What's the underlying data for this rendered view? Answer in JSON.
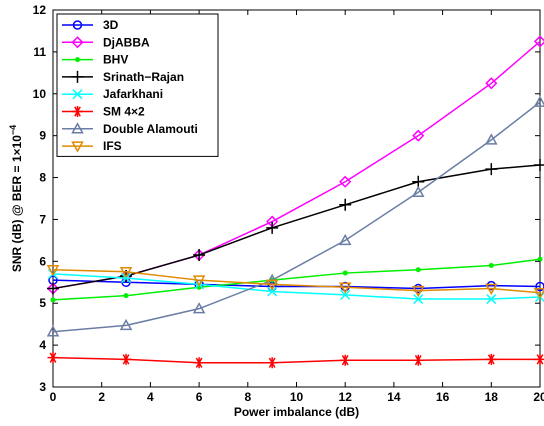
{
  "chart_data": {
    "type": "line",
    "title": "",
    "xlabel": "Power imbalance (dB)",
    "ylabel_parts": {
      "main": "SNR (dB) @ BER = 1",
      "times": "×",
      "base": "10",
      "exp": "−4"
    },
    "xlim": [
      0,
      20
    ],
    "ylim": [
      3,
      12
    ],
    "xticks": [
      0,
      2,
      4,
      6,
      8,
      10,
      12,
      14,
      16,
      18,
      20
    ],
    "yticks": [
      3,
      4,
      5,
      6,
      7,
      8,
      9,
      10,
      11,
      12
    ],
    "grid": false,
    "legend_position": "top-left",
    "x": [
      0,
      3,
      6,
      9,
      12,
      15,
      18,
      20
    ],
    "series": [
      {
        "name": "3D",
        "color": "#0000ff",
        "marker": "circle",
        "values": [
          5.55,
          5.5,
          5.45,
          5.4,
          5.4,
          5.35,
          5.42,
          5.4
        ]
      },
      {
        "name": "DjABBA",
        "color": "#ff00ff",
        "marker": "diamond",
        "values": [
          5.35,
          5.65,
          6.15,
          6.95,
          7.9,
          9.0,
          10.25,
          11.25
        ]
      },
      {
        "name": "BHV",
        "color": "#00ee00",
        "marker": "dot",
        "values": [
          5.08,
          5.18,
          5.38,
          5.55,
          5.72,
          5.8,
          5.9,
          6.05
        ]
      },
      {
        "name": "Srinath−Rajan",
        "color": "#000000",
        "marker": "plus",
        "values": [
          5.35,
          5.65,
          6.15,
          6.8,
          7.35,
          7.9,
          8.2,
          8.3
        ]
      },
      {
        "name": "Jafarkhani",
        "color": "#00ffff",
        "marker": "x",
        "values": [
          5.7,
          5.6,
          5.45,
          5.28,
          5.2,
          5.1,
          5.1,
          5.15
        ]
      },
      {
        "name": "SM 4×2",
        "color": "#ff0000",
        "marker": "star",
        "values": [
          3.7,
          3.66,
          3.58,
          3.58,
          3.64,
          3.64,
          3.66,
          3.66
        ]
      },
      {
        "name": "Double Alamouti",
        "color": "#6a7ea5",
        "marker": "triangle-up",
        "values": [
          4.32,
          4.47,
          4.87,
          5.55,
          6.5,
          7.65,
          8.9,
          9.8
        ]
      },
      {
        "name": "IFS",
        "color": "#e08a00",
        "marker": "triangle-down",
        "values": [
          5.8,
          5.75,
          5.55,
          5.45,
          5.38,
          5.3,
          5.35,
          5.25
        ]
      }
    ]
  }
}
